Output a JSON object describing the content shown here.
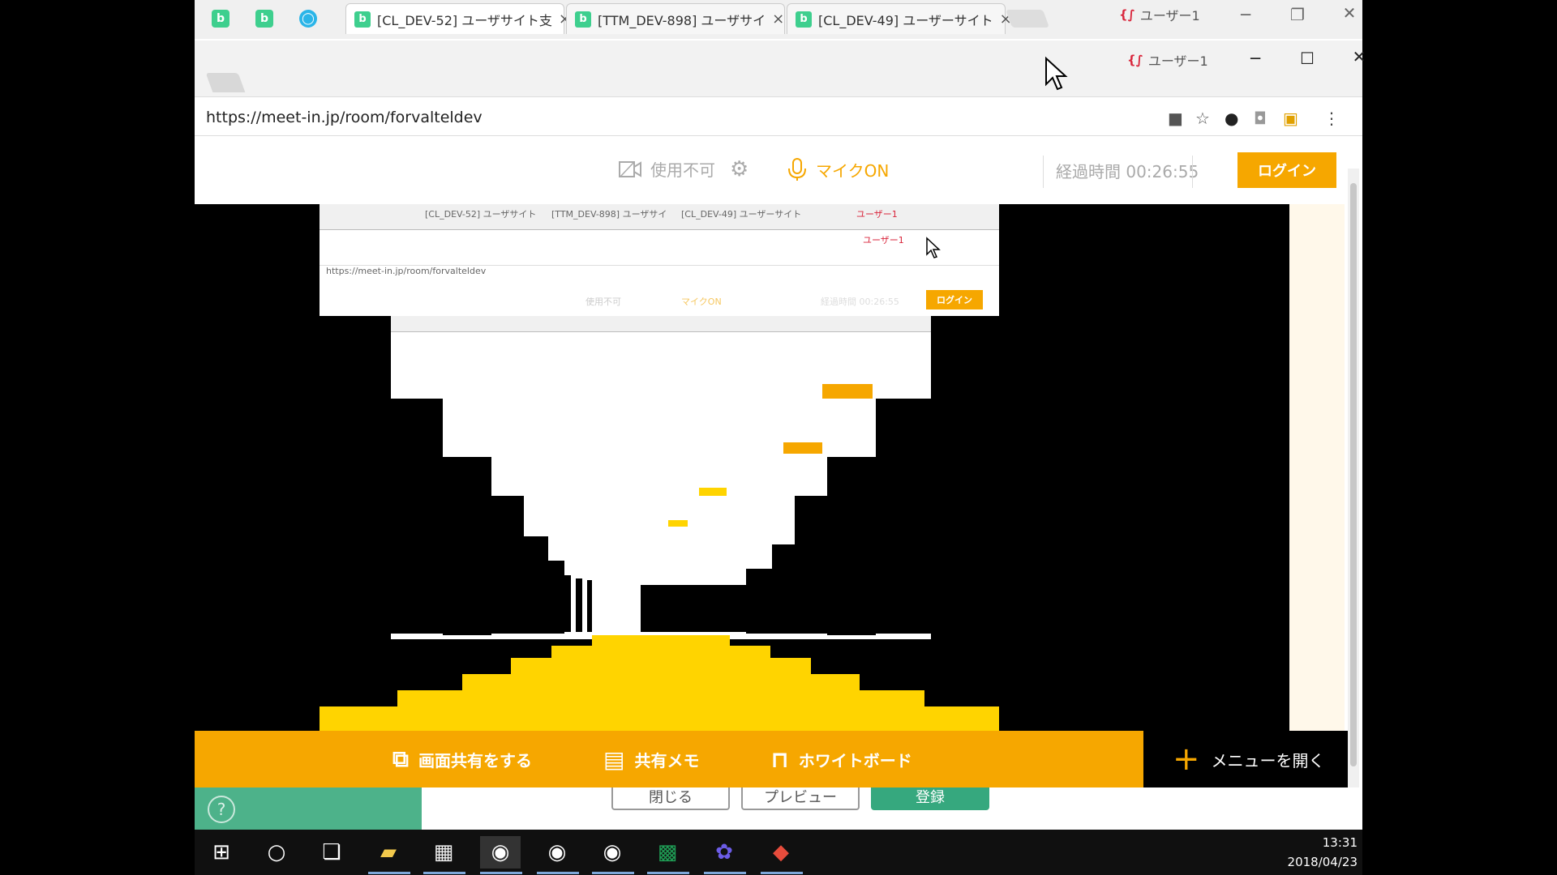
{
  "outer_window": {
    "tabs": [
      {
        "label": "[CL_DEV-52] ユーザサイト支",
        "active": true
      },
      {
        "label": "[TTM_DEV-898] ユーザサイ",
        "active": false
      },
      {
        "label": "[CL_DEV-49] ユーザーサイト",
        "active": false
      }
    ],
    "pinned_icons": [
      "b",
      "b",
      "circle"
    ],
    "user": "ユーザー1",
    "close": "×"
  },
  "inner_window": {
    "user": "ユーザー1",
    "url": "https://meet-in.jp/room/forvalteldev",
    "address_icons": [
      "video-camera-icon",
      "star-icon",
      "color-wheel-icon",
      "camera-icon",
      "extension-icon",
      "kebab-menu-icon"
    ]
  },
  "toolbar": {
    "camera_label": "使用不可",
    "mic_label": "マイクON",
    "elapsed_label": "経過時間 00:26:55",
    "login_label": "ログイン"
  },
  "mirror": {
    "tab1": "[CL_DEV-52] ユーザサイト",
    "tab2": "[TTM_DEV-898] ユーザサイ",
    "tab3": "[CL_DEV-49] ユーザーサイト",
    "user": "ユーザー1",
    "url": "https://meet-in.jp/room/forvalteldev",
    "camera_label": "使用不可",
    "mic_label": "マイクON",
    "elapsed_label": "経過時間 00:26:55",
    "login_label": "ログイン"
  },
  "actions": {
    "share_screen": "画面共有をする",
    "shared_memo": "共有メモ",
    "whiteboard": "ホワイトボード",
    "open_menu": "メニューを開く"
  },
  "footer": {
    "close_label": "閉じる",
    "preview_label": "プレビュー",
    "register_label": "登録",
    "help": "?"
  },
  "taskbar": {
    "time": "13:31",
    "date": "2018/04/23"
  }
}
